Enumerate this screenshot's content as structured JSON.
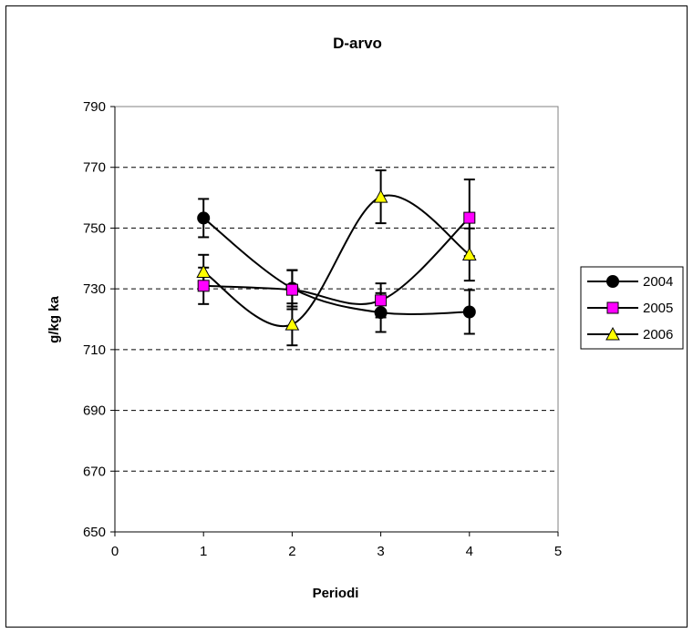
{
  "chart_data": {
    "type": "scatter",
    "title": "D-arvo",
    "xlabel": "Periodi",
    "ylabel": "g/kg ka",
    "xlim": [
      0,
      5
    ],
    "ylim": [
      650,
      790
    ],
    "xticks": [
      0,
      1,
      2,
      3,
      4,
      5
    ],
    "yticks": [
      650,
      670,
      690,
      710,
      730,
      750,
      770,
      790
    ],
    "grid": "horizontal dashed",
    "legend_position": "right",
    "smoothed_lines": true,
    "error_bars": true,
    "series": [
      {
        "name": "2004",
        "marker": "circle",
        "color": "#000000",
        "x": [
          1,
          2,
          3,
          4
        ],
        "y": [
          753.3,
          730.2,
          722.2,
          722.4
        ],
        "err": [
          6.3,
          6.0,
          6.4,
          7.2
        ]
      },
      {
        "name": "2005",
        "marker": "square",
        "color": "#ff00ff",
        "x": [
          1,
          2,
          3,
          4
        ],
        "y": [
          731.0,
          729.7,
          726.2,
          753.4
        ],
        "err": [
          6.0,
          6.4,
          5.6,
          12.6
        ]
      },
      {
        "name": "2006",
        "marker": "triangle",
        "color": "#ffff00",
        "x": [
          1,
          2,
          3,
          4
        ],
        "y": [
          735.6,
          718.3,
          760.3,
          741.3
        ],
        "err": [
          5.6,
          6.9,
          8.7,
          8.6
        ]
      }
    ]
  }
}
